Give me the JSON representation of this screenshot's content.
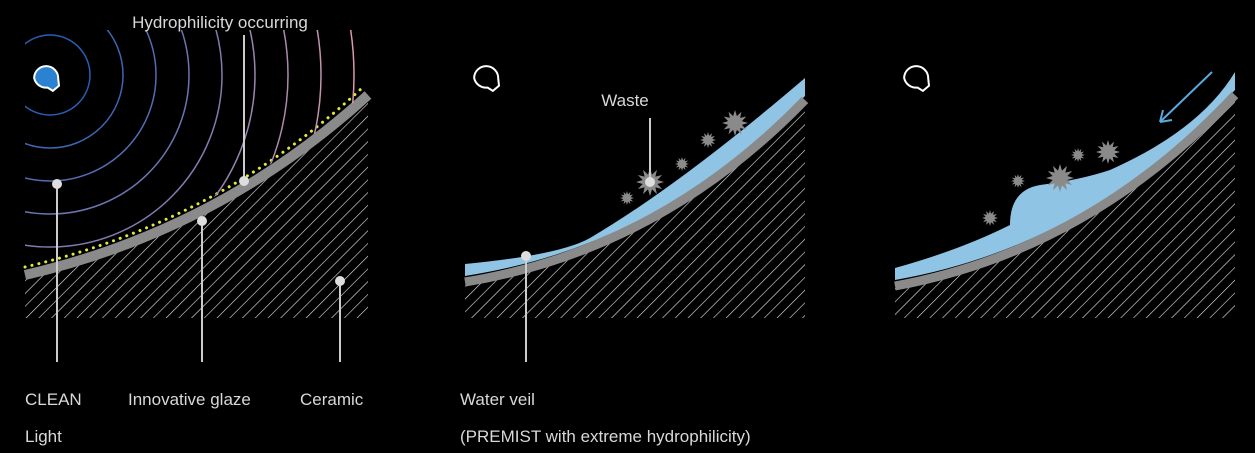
{
  "panels": [
    {
      "top_label": "Hydrophilicity occurring",
      "labels": [
        {
          "lines": [
            "CLEAN",
            "Light"
          ]
        },
        {
          "lines": [
            "Innovative glaze"
          ]
        },
        {
          "lines": [
            "Ceramic"
          ]
        }
      ]
    },
    {
      "top_label": "Waste",
      "labels": [
        {
          "lines": [
            "Water veil",
            "(PREMIST with extreme hydrophilicity)"
          ]
        }
      ]
    }
  ]
}
